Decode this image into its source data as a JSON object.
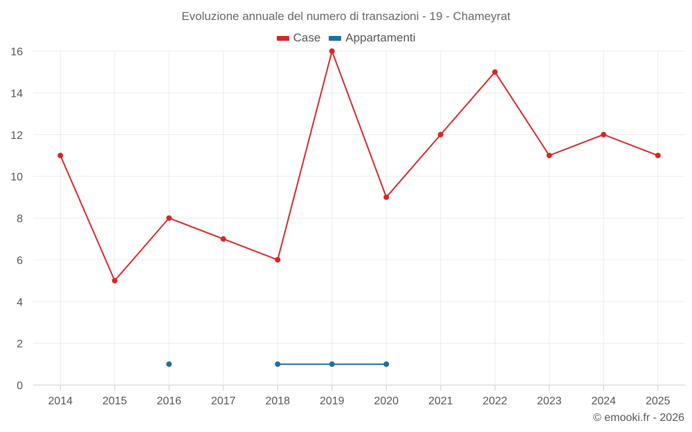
{
  "chart_data": {
    "type": "line",
    "title": "Evoluzione annuale del numero di transazioni - 19 - Chameyrat",
    "categories": [
      "2014",
      "2015",
      "2016",
      "2017",
      "2018",
      "2019",
      "2020",
      "2021",
      "2022",
      "2023",
      "2024",
      "2025"
    ],
    "series": [
      {
        "name": "Case",
        "color": "#d62728",
        "values": [
          11,
          5,
          8,
          7,
          6,
          16,
          9,
          12,
          15,
          11,
          12,
          11
        ]
      },
      {
        "name": "Appartamenti",
        "color": "#1f6fa3",
        "values": [
          null,
          null,
          1,
          null,
          1,
          1,
          1,
          null,
          null,
          null,
          null,
          null
        ]
      }
    ],
    "ylim": [
      0,
      16
    ],
    "yticks": [
      0,
      2,
      4,
      6,
      8,
      10,
      12,
      14,
      16
    ],
    "grid": true,
    "legend": "top-center"
  },
  "credit": "© emooki.fr - 2026"
}
